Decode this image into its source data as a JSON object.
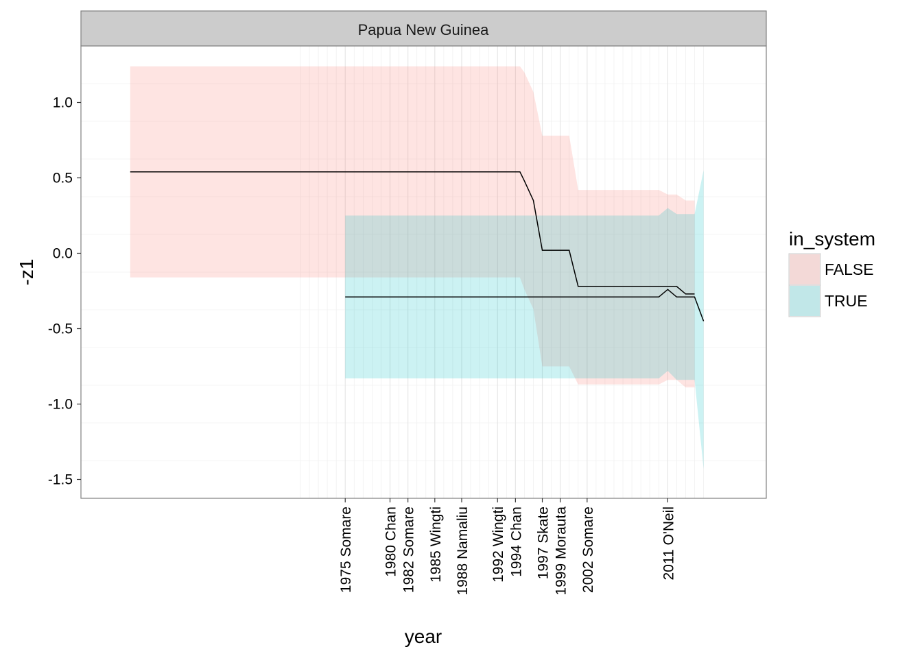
{
  "chart_data": {
    "type": "line",
    "facet": "Papua New Guinea",
    "xlabel": "year",
    "ylabel": "-z1",
    "xlim": [
      1945.5,
      2022
    ],
    "ylim": [
      -1.625,
      1.375
    ],
    "yticks": [
      1.0,
      0.5,
      0.0,
      -0.5,
      -1.0,
      -1.5
    ],
    "ytick_labels": [
      "1.0",
      "0.5",
      "0.0",
      "-0.5",
      "-1.0",
      "-1.5"
    ],
    "xticks": [
      {
        "year": 1975,
        "label": "1975 Somare"
      },
      {
        "year": 1980,
        "label": "1980 Chan"
      },
      {
        "year": 1982,
        "label": "1982 Somare"
      },
      {
        "year": 1985,
        "label": "1985 Wingti"
      },
      {
        "year": 1988,
        "label": "1988 Namaliu"
      },
      {
        "year": 1992,
        "label": "1992 Wingti"
      },
      {
        "year": 1994,
        "label": "1994 Chan"
      },
      {
        "year": 1997,
        "label": "1997 Skate"
      },
      {
        "year": 1999,
        "label": "1999 Morauta"
      },
      {
        "year": 2002,
        "label": "2002 Somare"
      },
      {
        "year": 2011,
        "label": "2011 O'Neil"
      }
    ],
    "minor_grid_years": [
      1970,
      1971,
      1972,
      1973,
      1974,
      1976,
      1977,
      1978,
      1979,
      1981,
      1983,
      1984,
      1986,
      1987,
      1989,
      1990,
      1991,
      1993,
      1995,
      1996,
      1998,
      2000,
      2001,
      2003,
      2004,
      2005,
      2006,
      2007,
      2008,
      2009,
      2010,
      2012,
      2013,
      2014,
      2015
    ],
    "legend": {
      "title": "in_system",
      "position": "right",
      "items": [
        {
          "label": "FALSE",
          "color": "#F8766D"
        },
        {
          "label": "TRUE",
          "color": "#00BFC4"
        }
      ]
    },
    "series": [
      {
        "name": "FALSE",
        "x": [
          1951,
          1994.5,
          1995,
          1996,
          1997,
          1998,
          1999,
          2000,
          2001,
          2002,
          2003,
          2004,
          2005,
          2006,
          2007,
          2008,
          2009,
          2010,
          2011,
          2012,
          2013,
          2014
        ],
        "y": [
          0.54,
          0.54,
          0.48,
          0.35,
          0.02,
          0.02,
          0.02,
          0.02,
          -0.22,
          -0.22,
          -0.22,
          -0.22,
          -0.22,
          -0.22,
          -0.22,
          -0.22,
          -0.22,
          -0.22,
          -0.22,
          -0.22,
          -0.27,
          -0.27
        ],
        "ymin": [
          -0.16,
          -0.16,
          -0.24,
          -0.37,
          -0.75,
          -0.75,
          -0.75,
          -0.75,
          -0.87,
          -0.87,
          -0.87,
          -0.87,
          -0.87,
          -0.87,
          -0.87,
          -0.87,
          -0.87,
          -0.87,
          -0.84,
          -0.84,
          -0.89,
          -0.89
        ],
        "ymax": [
          1.24,
          1.24,
          1.2,
          1.07,
          0.78,
          0.78,
          0.78,
          0.78,
          0.42,
          0.42,
          0.42,
          0.42,
          0.42,
          0.42,
          0.42,
          0.42,
          0.42,
          0.42,
          0.39,
          0.39,
          0.35,
          0.35
        ],
        "line_color": "#000000",
        "fill_color": "#F8766D"
      },
      {
        "name": "TRUE",
        "x": [
          1975,
          1980,
          1985,
          1990,
          1995,
          2000,
          2005,
          2010,
          2011,
          2012,
          2013,
          2014,
          2015
        ],
        "y": [
          -0.29,
          -0.29,
          -0.29,
          -0.29,
          -0.29,
          -0.29,
          -0.29,
          -0.29,
          -0.24,
          -0.29,
          -0.29,
          -0.29,
          -0.45
        ],
        "ymin": [
          -0.83,
          -0.83,
          -0.83,
          -0.83,
          -0.83,
          -0.83,
          -0.83,
          -0.83,
          -0.78,
          -0.84,
          -0.84,
          -0.84,
          -1.43
        ],
        "ymax": [
          0.25,
          0.25,
          0.25,
          0.25,
          0.25,
          0.25,
          0.25,
          0.25,
          0.3,
          0.26,
          0.26,
          0.26,
          0.55
        ],
        "line_color": "#000000",
        "fill_color": "#00BFC4"
      }
    ]
  }
}
